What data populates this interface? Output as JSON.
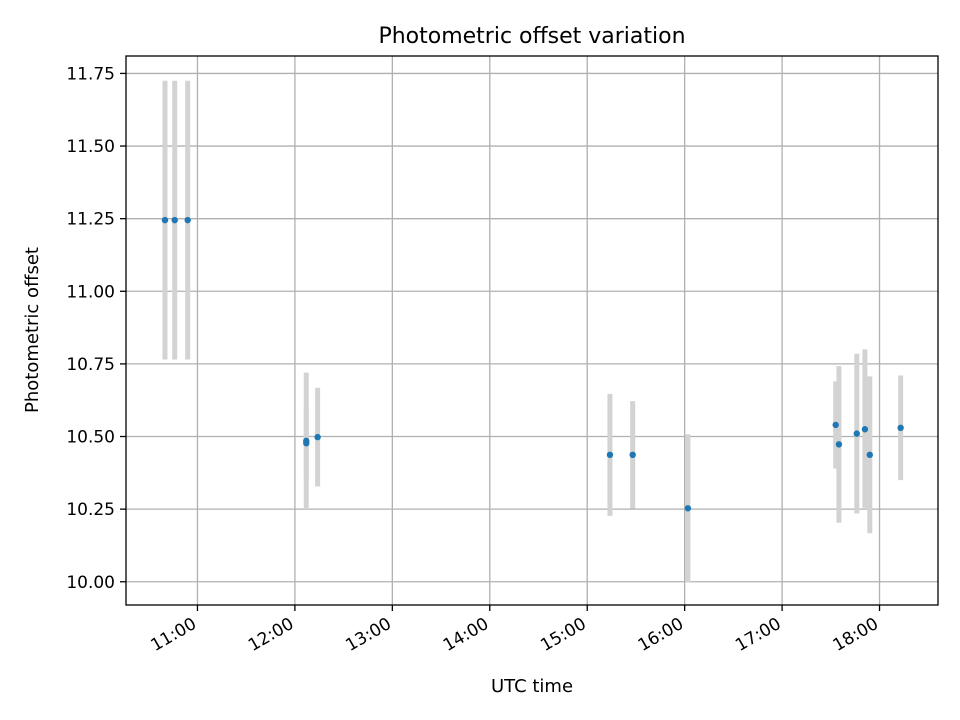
{
  "chart_data": {
    "type": "scatter",
    "title": "Photometric offset variation",
    "xlabel": "UTC time",
    "ylabel": "Photometric offset",
    "x_ticks": [
      "11:00",
      "12:00",
      "13:00",
      "14:00",
      "15:00",
      "16:00",
      "17:00",
      "18:00"
    ],
    "y_ticks": [
      "10.00",
      "10.25",
      "10.50",
      "10.75",
      "11.00",
      "11.25",
      "11.50",
      "11.75"
    ],
    "xlim": [
      "10:16",
      "18:36"
    ],
    "ylim": [
      9.92,
      11.81
    ],
    "grid": true,
    "series": [
      {
        "points": [
          {
            "x": "10:40",
            "y": 11.245,
            "err": 0.48
          },
          {
            "x": "10:46",
            "y": 11.245,
            "err": 0.48
          },
          {
            "x": "10:54",
            "y": 11.245,
            "err": 0.48
          },
          {
            "x": "12:07",
            "y": 10.485,
            "err": 0.235
          },
          {
            "x": "12:07",
            "y": 10.477,
            "err": 0.12
          },
          {
            "x": "12:14",
            "y": 10.498,
            "err": 0.17
          },
          {
            "x": "15:14",
            "y": 10.437,
            "err": 0.21
          },
          {
            "x": "15:28",
            "y": 10.437,
            "err": 0.185
          },
          {
            "x": "16:02",
            "y": 10.253,
            "err": 0.255
          },
          {
            "x": "17:33",
            "y": 10.54,
            "err": 0.15
          },
          {
            "x": "17:35",
            "y": 10.473,
            "err": 0.27
          },
          {
            "x": "17:46",
            "y": 10.51,
            "err": 0.275
          },
          {
            "x": "17:51",
            "y": 10.525,
            "err": 0.275
          },
          {
            "x": "17:54",
            "y": 10.437,
            "err": 0.27
          },
          {
            "x": "18:13",
            "y": 10.53,
            "err": 0.18
          }
        ]
      }
    ],
    "colors": {
      "point": "#1f77b4",
      "errorbar": "#d3d3d3",
      "grid": "#b0b0b0",
      "axes": "#000000"
    }
  }
}
